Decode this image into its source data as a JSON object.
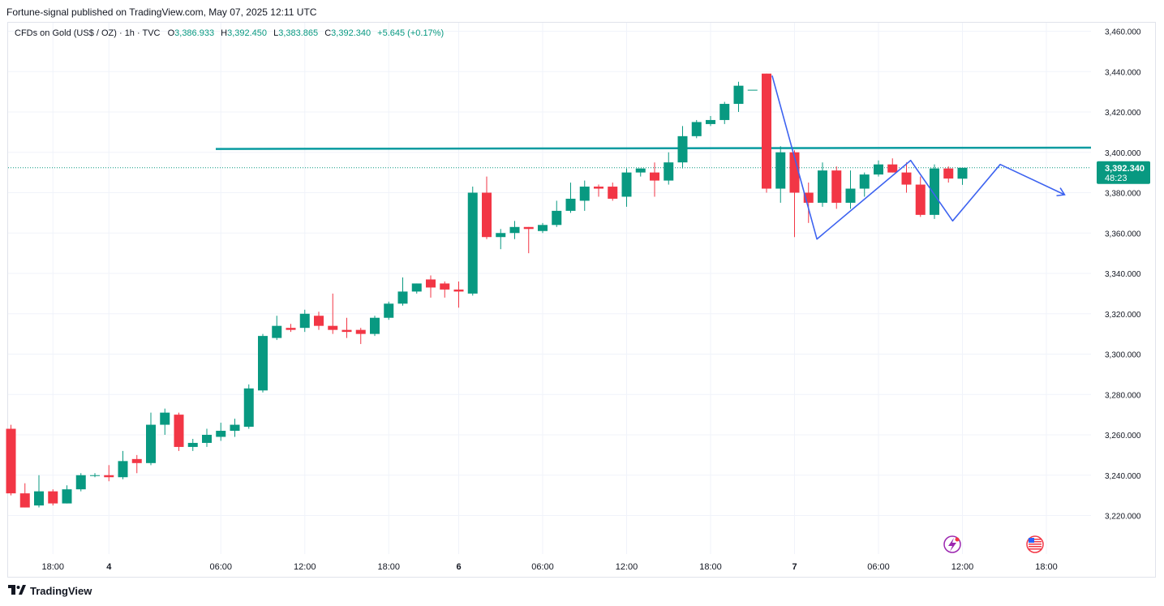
{
  "header": {
    "publisher_line": "Fortune-signal published on TradingView.com, May 07, 2025 12:11 UTC"
  },
  "legend": {
    "symbol": "CFDs on Gold (US$ / OZ) · 1h · TVC",
    "open_label": "O",
    "open": "3,386.933",
    "high_label": "H",
    "high": "3,392.450",
    "low_label": "L",
    "low": "3,383.865",
    "close_label": "C",
    "close": "3,392.340",
    "change": "+5.645 (+0.17%)"
  },
  "price_tag": {
    "price": "3,392.340",
    "countdown": "48:23"
  },
  "footer": {
    "brand": "TradingView"
  },
  "colors": {
    "up": "#089981",
    "down": "#f23645",
    "resistance": "#089ba0",
    "path": "#3d63f0",
    "grid": "#f0f3fa"
  },
  "icons": [
    "lightning-event-icon",
    "us-flag-event-icon"
  ],
  "chart_data": {
    "type": "candlestick",
    "title": "CFDs on Gold (US$ / OZ)",
    "interval": "1h",
    "y_ticks": [
      3220000,
      3240000,
      3260000,
      3280000,
      3300000,
      3320000,
      3340000,
      3360000,
      3380000,
      3400000,
      3420000,
      3440000,
      3460000
    ],
    "y_tick_labels": [
      "3,220.000",
      "3,240.000",
      "3,260.000",
      "3,280.000",
      "3,300.000",
      "3,320.000",
      "3,340.000",
      "3,360.000",
      "3,380.000",
      "3,400.000",
      "3,420.000",
      "3,440.000",
      "3,460.000"
    ],
    "x_ticks": [
      {
        "label": "18:00",
        "bar": 3
      },
      {
        "label": "4",
        "bar": 7,
        "bold": true
      },
      {
        "label": "06:00",
        "bar": 15
      },
      {
        "label": "12:00",
        "bar": 21
      },
      {
        "label": "18:00",
        "bar": 27
      },
      {
        "label": "6",
        "bar": 32,
        "bold": true
      },
      {
        "label": "06:00",
        "bar": 38
      },
      {
        "label": "12:00",
        "bar": 44
      },
      {
        "label": "18:00",
        "bar": 50
      },
      {
        "label": "7",
        "bar": 56,
        "bold": true
      },
      {
        "label": "06:00",
        "bar": 62
      },
      {
        "label": "12:00",
        "bar": 68
      },
      {
        "label": "18:00",
        "bar": 74
      }
    ],
    "candles": [
      [
        3263,
        3265,
        3230,
        3231
      ],
      [
        3231,
        3236,
        3224,
        3224
      ],
      [
        3225,
        3240,
        3224,
        3232
      ],
      [
        3232,
        3233,
        3225,
        3226
      ],
      [
        3226,
        3235,
        3226,
        3233
      ],
      [
        3233,
        3241,
        3232,
        3240
      ],
      [
        3240,
        3241,
        3239,
        3240
      ],
      [
        3240,
        3245,
        3237,
        3239
      ],
      [
        3239,
        3252,
        3238,
        3247
      ],
      [
        3248,
        3250,
        3241,
        3246
      ],
      [
        3246,
        3271,
        3245,
        3265
      ],
      [
        3265,
        3273,
        3260,
        3271
      ],
      [
        3270,
        3271,
        3252,
        3254
      ],
      [
        3254,
        3258,
        3252,
        3256
      ],
      [
        3256,
        3263,
        3254,
        3260
      ],
      [
        3259,
        3266,
        3257,
        3262
      ],
      [
        3262,
        3268,
        3259,
        3265
      ],
      [
        3264,
        3285,
        3263,
        3283
      ],
      [
        3282,
        3310,
        3281,
        3309
      ],
      [
        3308,
        3319,
        3307,
        3314
      ],
      [
        3313,
        3315,
        3311,
        3312
      ],
      [
        3313,
        3322,
        3311,
        3320
      ],
      [
        3319,
        3321,
        3312,
        3314
      ],
      [
        3314,
        3330,
        3310,
        3312
      ],
      [
        3312,
        3318,
        3308,
        3311
      ],
      [
        3312,
        3313,
        3305,
        3310
      ],
      [
        3310,
        3319,
        3309,
        3318
      ],
      [
        3318,
        3326,
        3317,
        3325
      ],
      [
        3325,
        3338,
        3324,
        3331
      ],
      [
        3331,
        3335,
        3330,
        3335
      ],
      [
        3337,
        3339,
        3328,
        3333
      ],
      [
        3335,
        3336,
        3328,
        3332
      ],
      [
        3332,
        3336,
        3323,
        3331
      ],
      [
        3330,
        3383,
        3329,
        3380
      ],
      [
        3380,
        3388,
        3357,
        3358
      ],
      [
        3358,
        3362,
        3352,
        3360
      ],
      [
        3360,
        3366,
        3357,
        3363
      ],
      [
        3363,
        3363,
        3350,
        3362
      ],
      [
        3361,
        3365,
        3360,
        3364
      ],
      [
        3364,
        3376,
        3363,
        3371
      ],
      [
        3371,
        3385,
        3370,
        3377
      ],
      [
        3376,
        3386,
        3371,
        3383
      ],
      [
        3383,
        3384,
        3378,
        3382
      ],
      [
        3383,
        3385,
        3376,
        3377
      ],
      [
        3378,
        3392,
        3373,
        3390
      ],
      [
        3390,
        3392,
        3388,
        3392
      ],
      [
        3390,
        3395,
        3378,
        3386
      ],
      [
        3386,
        3400,
        3384,
        3395
      ],
      [
        3395,
        3413,
        3392,
        3408
      ],
      [
        3408,
        3416,
        3407,
        3415
      ],
      [
        3414,
        3418,
        3413,
        3416
      ],
      [
        3416,
        3425,
        3414,
        3424
      ],
      [
        3424,
        3435,
        3420,
        3433
      ],
      [
        3431,
        3431,
        3431,
        3431
      ],
      [
        3439,
        3439,
        3380,
        3382
      ],
      [
        3382,
        3403,
        3375,
        3400
      ],
      [
        3400,
        3401,
        3358,
        3380
      ],
      [
        3380,
        3385,
        3365,
        3375
      ],
      [
        3375,
        3395,
        3373,
        3391
      ],
      [
        3391,
        3393,
        3372,
        3375
      ],
      [
        3375,
        3391,
        3372,
        3382
      ],
      [
        3382,
        3390,
        3378,
        3389
      ],
      [
        3389,
        3396,
        3388,
        3394
      ],
      [
        3394,
        3397,
        3390,
        3390
      ],
      [
        3390,
        3395,
        3380,
        3384
      ],
      [
        3384,
        3388,
        3368,
        3369
      ],
      [
        3369,
        3394,
        3367,
        3392
      ],
      [
        3392,
        3393,
        3385,
        3387
      ],
      [
        3386.933,
        3392.45,
        3383.865,
        3392.34
      ]
    ],
    "resistance_level": 3402,
    "projection_path": [
      {
        "bar": 54.4,
        "price": 3438
      },
      {
        "bar": 57.6,
        "price": 3357
      },
      {
        "bar": 64.3,
        "price": 3396
      },
      {
        "bar": 67.3,
        "price": 3366
      },
      {
        "bar": 70.7,
        "price": 3394
      },
      {
        "bar": 75.3,
        "price": 3379
      }
    ],
    "current_price": 3392.34
  }
}
